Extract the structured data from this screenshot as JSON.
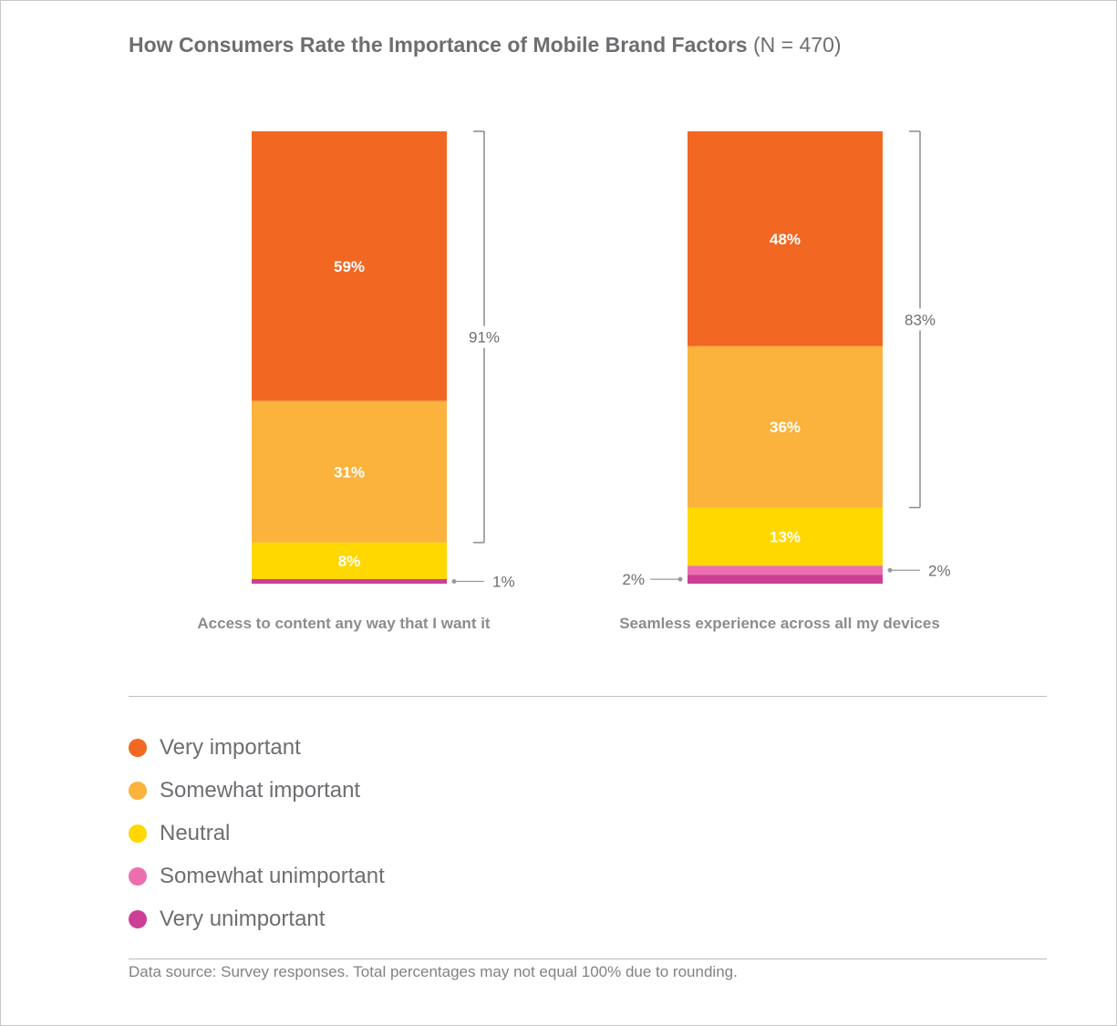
{
  "title": {
    "main": "How Consumers Rate the Importance of Mobile Brand Factors",
    "sample": "(N = 470)"
  },
  "colors": {
    "very_important": "#f26823",
    "somewhat_important": "#fbb33e",
    "neutral": "#ffd800",
    "somewhat_unimportant": "#ec6fad",
    "very_unimportant": "#cd3e97",
    "text": "#6d6e71",
    "bracket": "#8c8c8c"
  },
  "chart_data": {
    "type": "bar",
    "stacked": true,
    "categories": [
      "Access to content any way that I want it",
      "Seamless experience across all my devices"
    ],
    "series": [
      {
        "name": "Very important",
        "values": [
          59,
          48
        ]
      },
      {
        "name": "Somewhat important",
        "values": [
          31,
          36
        ]
      },
      {
        "name": "Neutral",
        "values": [
          8,
          13
        ]
      },
      {
        "name": "Somewhat unimportant",
        "values": [
          0,
          2
        ]
      },
      {
        "name": "Very unimportant",
        "values": [
          1,
          2
        ]
      }
    ],
    "segment_labels": [
      [
        "59%",
        "31%",
        "8%",
        "",
        ""
      ],
      [
        "48%",
        "36%",
        "13%",
        "",
        ""
      ]
    ],
    "bracket_totals": [
      "91%",
      "83%"
    ],
    "small_value_callouts": [
      [
        {
          "label": "1%",
          "series": "Very unimportant",
          "side": "right"
        }
      ],
      [
        {
          "label": "2%",
          "series": "Somewhat unimportant",
          "side": "right"
        },
        {
          "label": "2%",
          "series": "Very unimportant",
          "side": "left"
        }
      ]
    ],
    "legend_position": "bottom-left",
    "grid": false
  },
  "legend": {
    "items": [
      {
        "label": "Very important",
        "color": "#f26823"
      },
      {
        "label": "Somewhat important",
        "color": "#fbb33e"
      },
      {
        "label": "Neutral",
        "color": "#ffd800"
      },
      {
        "label": "Somewhat unimportant",
        "color": "#ec6fad"
      },
      {
        "label": "Very unimportant",
        "color": "#cd3e97"
      }
    ]
  },
  "footnote": "Data source: Survey responses. Total percentages may not equal 100% due to rounding."
}
